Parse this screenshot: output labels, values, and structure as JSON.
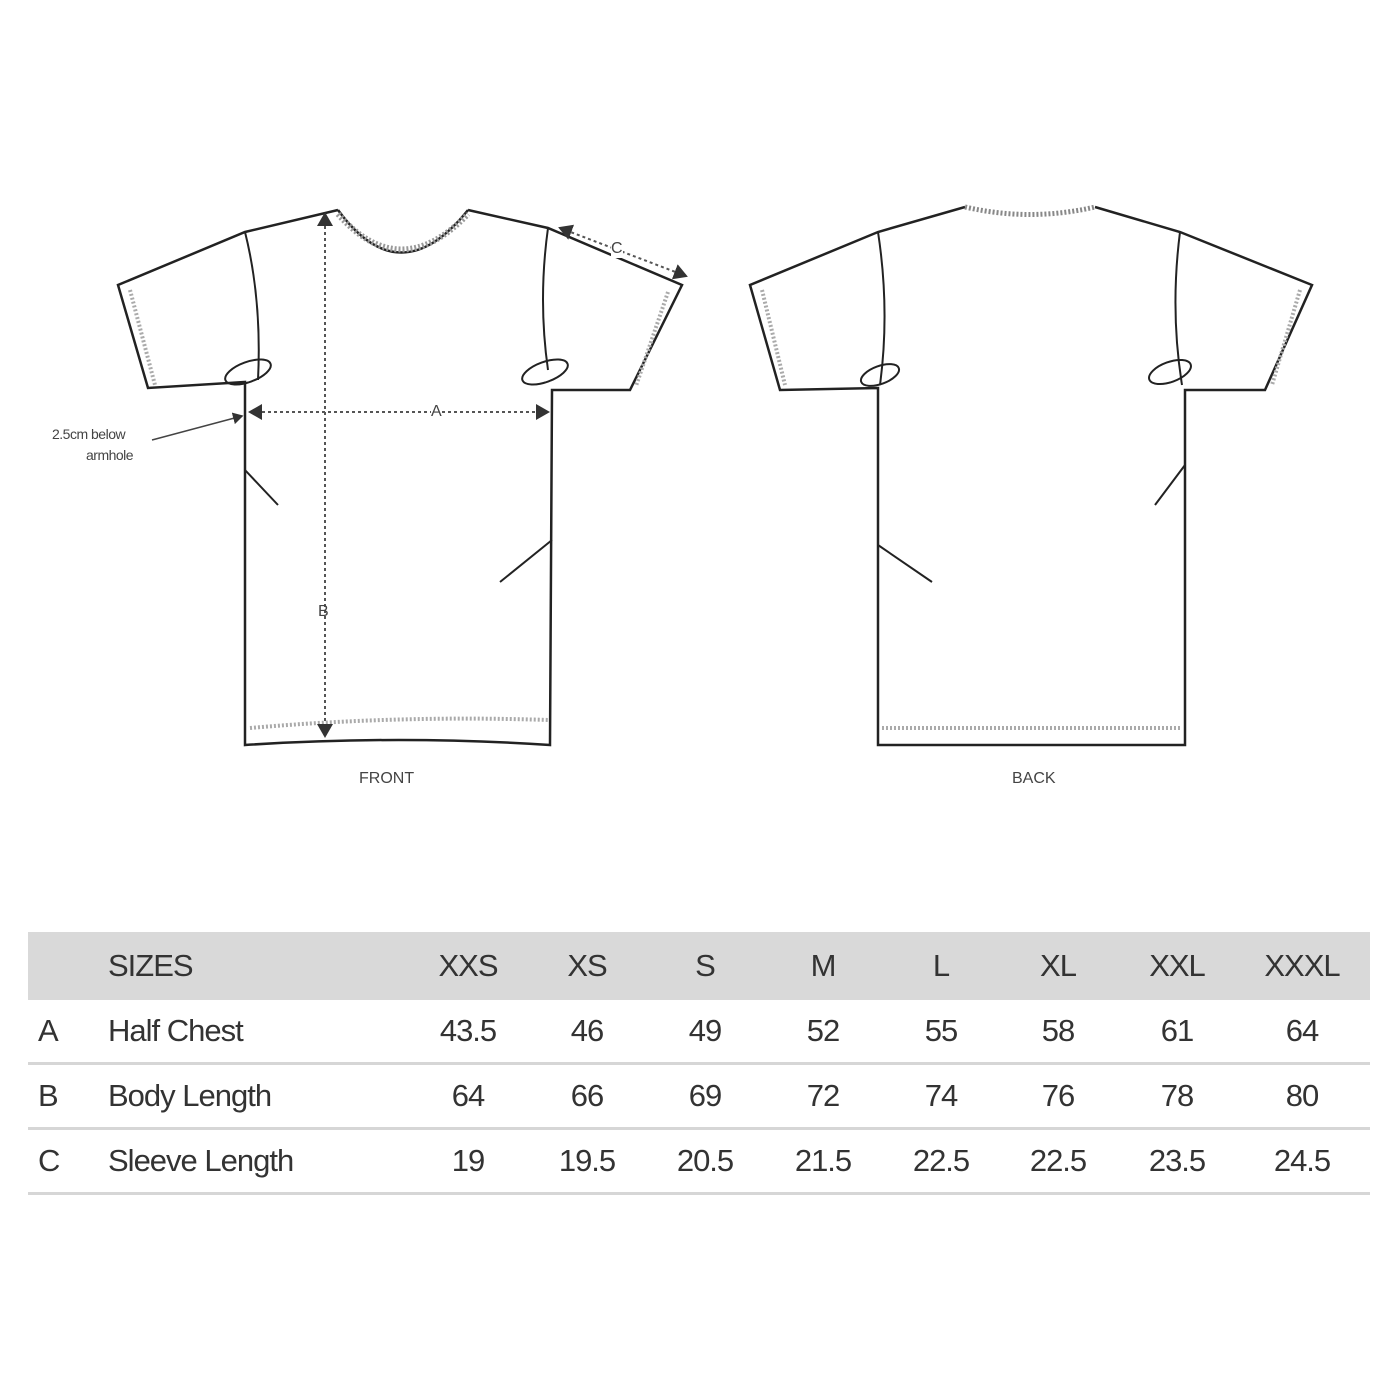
{
  "diagram": {
    "front_label": "FRONT",
    "back_label": "BACK",
    "annotation": [
      "2.5cm below",
      "armhole"
    ],
    "marker_a": "A",
    "marker_b": "B",
    "marker_c": "C"
  },
  "table": {
    "header_label": "SIZES",
    "sizes": [
      "XXS",
      "XS",
      "S",
      "M",
      "L",
      "XL",
      "XXL",
      "XXXL"
    ],
    "rows": [
      {
        "key": "A",
        "label": "Half Chest",
        "values": [
          "43.5",
          "46",
          "49",
          "52",
          "55",
          "58",
          "61",
          "64"
        ]
      },
      {
        "key": "B",
        "label": "Body Length",
        "values": [
          "64",
          "66",
          "69",
          "72",
          "74",
          "76",
          "78",
          "80"
        ]
      },
      {
        "key": "C",
        "label": "Sleeve Length",
        "values": [
          "19",
          "19.5",
          "20.5",
          "21.5",
          "22.5",
          "22.5",
          "23.5",
          "24.5"
        ]
      }
    ],
    "header_bg": "#d9d9d9"
  }
}
